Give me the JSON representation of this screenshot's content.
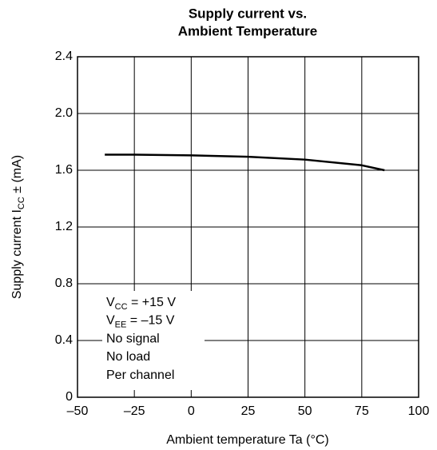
{
  "chart_data": {
    "type": "line",
    "title": [
      "Supply current vs.",
      "Ambient Temperature"
    ],
    "x_label": "Ambient temperature  Ta  (°C)",
    "y_label": {
      "text": "Supply current  I",
      "sub": "CC",
      "after": " ± (mA)"
    },
    "x": [
      -38,
      -25,
      0,
      25,
      50,
      75,
      85
    ],
    "series": [
      {
        "name": "Supply current",
        "color": "#000000",
        "values": [
          1.71,
          1.71,
          1.705,
          1.695,
          1.675,
          1.635,
          1.6
        ]
      }
    ],
    "xlim": [
      -50,
      100
    ],
    "xticks": [
      {
        "value": -50,
        "label": "–50"
      },
      {
        "value": -25,
        "label": "–25"
      },
      0,
      25,
      50,
      75,
      100
    ],
    "ylim": [
      0,
      2.4
    ],
    "yticks": [
      0,
      0.4,
      0.8,
      1.2,
      1.6,
      {
        "value": 2,
        "label": "2.0"
      },
      2.4
    ],
    "grid": true,
    "annotation": [
      {
        "text": "V",
        "sub": "CC",
        "after": " = +15 V"
      },
      {
        "text": "V",
        "sub": "EE",
        "after": " = –15 V"
      },
      {
        "text": "No signal"
      },
      {
        "text": "No load"
      },
      {
        "text": "Per channel"
      }
    ]
  }
}
